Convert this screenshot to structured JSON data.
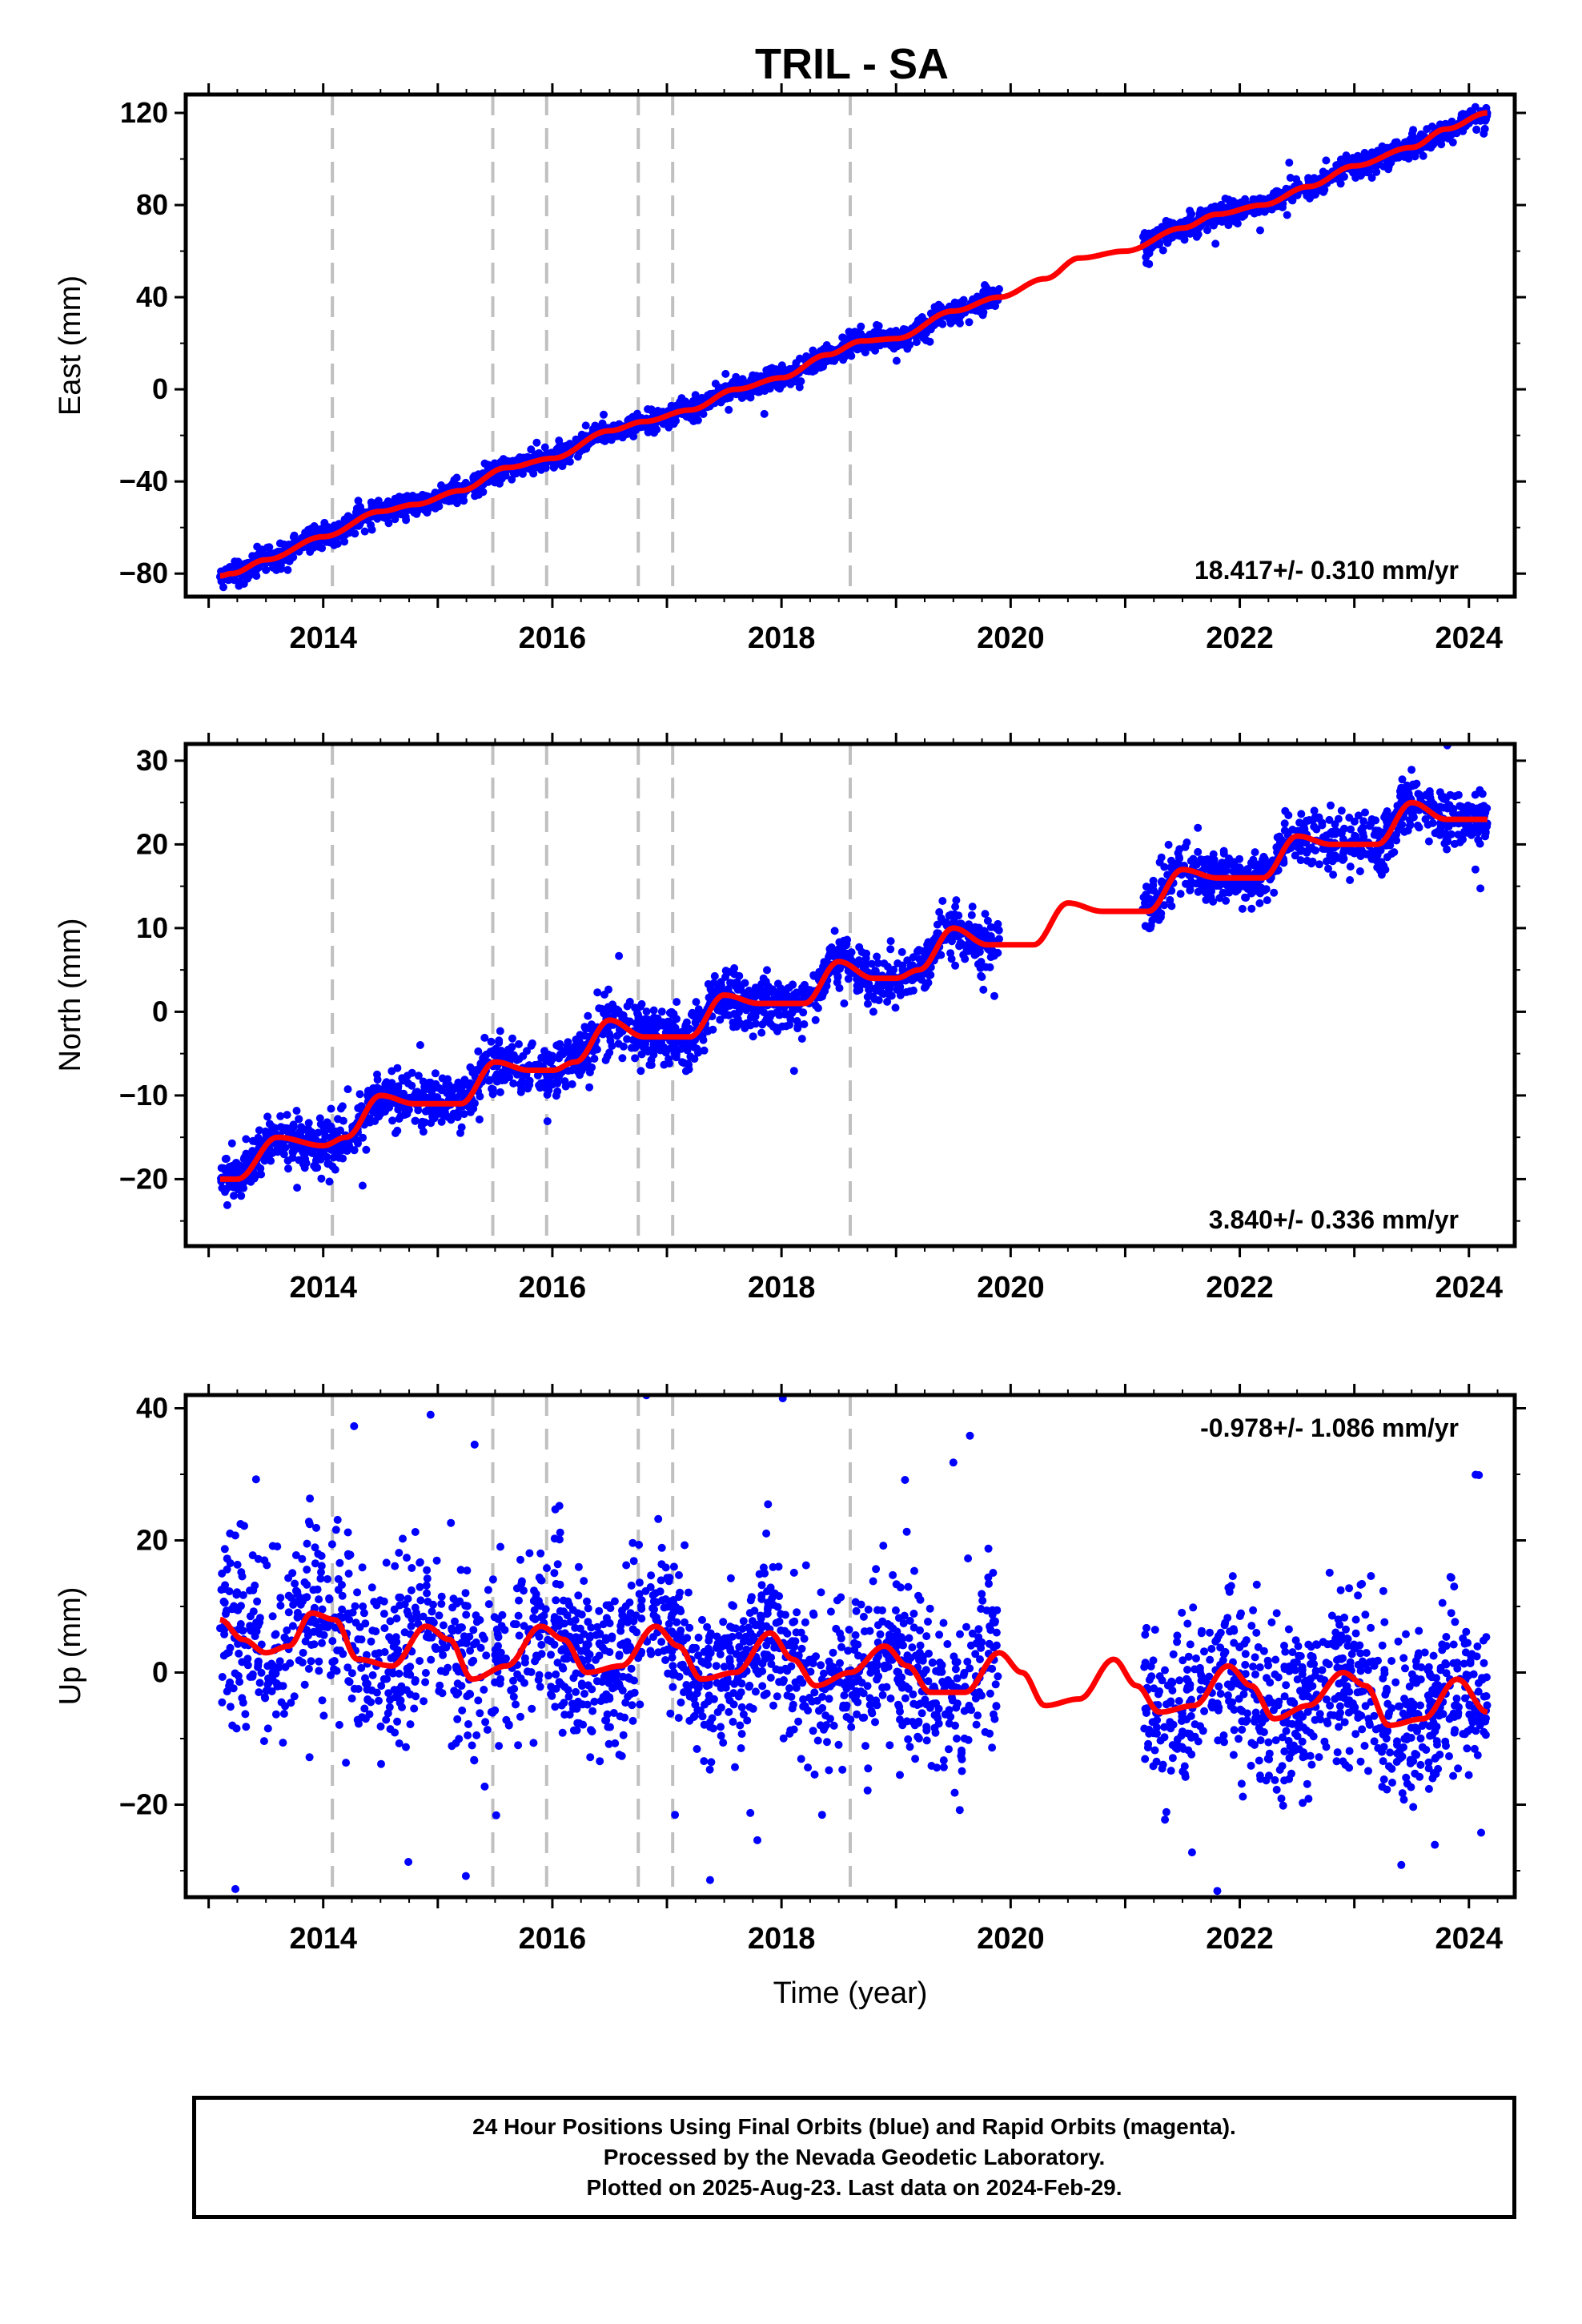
{
  "title": "TRIL - SA",
  "footer": {
    "line1": "24 Hour Positions Using Final Orbits (blue) and Rapid Orbits (magenta).",
    "line2": "Processed by the Nevada Geodetic Laboratory.",
    "line3": "Plotted on 2025-Aug-23. Last data on 2024-Feb-29."
  },
  "colors": {
    "points": "#0000ff",
    "fit": "#ff0000",
    "breaks": "#c0c0c0"
  },
  "chart_data": [
    {
      "type": "scatter",
      "ylabel": "East (mm)",
      "xlabel": "",
      "xlim": [
        2012.8,
        2024.4
      ],
      "ylim": [
        -90,
        128
      ],
      "yticks": [
        -80,
        -40,
        0,
        40,
        80,
        120
      ],
      "xticks": [
        2014,
        2016,
        2018,
        2020,
        2022,
        2024
      ],
      "rate_label": "18.417+/- 0.310 mm/yr",
      "rate_position": "bottom-right",
      "breaks": [
        2014.08,
        2015.48,
        2015.95,
        2016.75,
        2017.05,
        2018.6
      ],
      "gap": [
        2019.9,
        2021.15
      ],
      "data_range": [
        2013.1,
        2024.16
      ],
      "trend": {
        "t0": 2013.1,
        "y0": -80.5,
        "rate": 18.417
      },
      "fit": {
        "x": [
          2013.1,
          2013.2,
          2013.5,
          2014.0,
          2014.5,
          2014.8,
          2015.2,
          2015.6,
          2016.0,
          2016.5,
          2016.8,
          2017.2,
          2017.6,
          2018.0,
          2018.4,
          2018.7,
          2019.0,
          2019.5,
          2019.9,
          2020.3,
          2020.6,
          2021.0,
          2021.5,
          2021.8,
          2022.2,
          2022.6,
          2023.0,
          2023.5,
          2023.8,
          2024.16
        ],
        "y": [
          -81,
          -80,
          -74,
          -64,
          -53,
          -50,
          -44,
          -34,
          -30,
          -18,
          -14,
          -9,
          0,
          5,
          15,
          21,
          22,
          34,
          40,
          48,
          57,
          60,
          70,
          76,
          80,
          88,
          97,
          105,
          113,
          120
        ]
      },
      "points": {
        "count": 2700,
        "noise": 2.5,
        "outliers": 10
      }
    },
    {
      "type": "scatter",
      "ylabel": "North (mm)",
      "xlabel": "",
      "xlim": [
        2012.8,
        2024.4
      ],
      "ylim": [
        -28,
        32
      ],
      "yticks": [
        -20,
        -10,
        0,
        10,
        20,
        30
      ],
      "xticks": [
        2014,
        2016,
        2018,
        2020,
        2022,
        2024
      ],
      "rate_label": "3.840+/- 0.336 mm/yr",
      "rate_position": "bottom-right",
      "breaks": [
        2014.08,
        2015.48,
        2015.95,
        2016.75,
        2017.05,
        2018.6
      ],
      "gap": [
        2019.9,
        2021.15
      ],
      "data_range": [
        2013.1,
        2024.16
      ],
      "trend": {
        "t0": 2013.1,
        "y0": -20.0,
        "rate": 3.84
      },
      "fit": {
        "x": [
          2013.1,
          2013.25,
          2013.6,
          2014.0,
          2014.2,
          2014.5,
          2014.8,
          2015.0,
          2015.2,
          2015.5,
          2015.8,
          2016.0,
          2016.2,
          2016.5,
          2016.8,
          2017.0,
          2017.2,
          2017.5,
          2017.8,
          2018.0,
          2018.2,
          2018.5,
          2018.8,
          2019.0,
          2019.2,
          2019.5,
          2019.8,
          2020.0,
          2020.2,
          2020.5,
          2020.8,
          2021.0,
          2021.2,
          2021.5,
          2021.8,
          2022.0,
          2022.2,
          2022.5,
          2022.8,
          2023.0,
          2023.2,
          2023.5,
          2023.8,
          2024.16
        ],
        "y": [
          -20,
          -20,
          -15,
          -16,
          -15,
          -10,
          -11,
          -11,
          -11,
          -6,
          -7,
          -7,
          -6,
          -1,
          -3,
          -3,
          -3,
          2,
          1,
          1,
          1,
          6,
          4,
          4,
          5,
          10,
          8,
          8,
          8,
          13,
          12,
          12,
          12,
          17,
          16,
          16,
          16,
          21,
          20,
          20,
          20,
          25,
          23,
          23
        ]
      },
      "points": {
        "count": 2700,
        "noise": 1.6,
        "outliers": 12
      }
    },
    {
      "type": "scatter",
      "ylabel": "Up (mm)",
      "xlabel": "Time (year)",
      "xlim": [
        2012.8,
        2024.4
      ],
      "ylim": [
        -34,
        42
      ],
      "yticks": [
        -20,
        0,
        20,
        40
      ],
      "xticks": [
        2014,
        2016,
        2018,
        2020,
        2022,
        2024
      ],
      "rate_label": "-0.978+/- 1.086 mm/yr",
      "rate_position": "top-right",
      "breaks": [
        2014.08,
        2015.48,
        2015.95,
        2016.75,
        2017.05,
        2018.6
      ],
      "gap": [
        2019.9,
        2021.15
      ],
      "data_range": [
        2013.1,
        2024.16
      ],
      "trend": {
        "t0": 2013.1,
        "y0": 5.0,
        "rate": -0.978
      },
      "fit": {
        "x": [
          2013.1,
          2013.3,
          2013.5,
          2013.7,
          2013.9,
          2014.1,
          2014.3,
          2014.6,
          2014.9,
          2015.1,
          2015.3,
          2015.6,
          2015.9,
          2016.1,
          2016.3,
          2016.6,
          2016.9,
          2017.1,
          2017.3,
          2017.6,
          2017.9,
          2018.1,
          2018.3,
          2018.6,
          2018.9,
          2019.1,
          2019.3,
          2019.6,
          2019.9,
          2020.1,
          2020.3,
          2020.6,
          2020.9,
          2021.1,
          2021.3,
          2021.6,
          2021.9,
          2022.1,
          2022.3,
          2022.6,
          2022.9,
          2023.1,
          2023.3,
          2023.6,
          2023.9,
          2024.16
        ],
        "y": [
          8,
          5,
          3,
          4,
          9,
          8,
          2,
          1,
          7,
          5,
          -1,
          1,
          7,
          5,
          0,
          1,
          7,
          4,
          -1,
          0,
          6,
          2,
          -2,
          0,
          4,
          1,
          -3,
          -3,
          3,
          0,
          -5,
          -4,
          2,
          -2,
          -6,
          -5,
          1,
          -2,
          -7,
          -5,
          0,
          -2,
          -8,
          -7,
          -1,
          -6
        ]
      },
      "points": {
        "count": 2700,
        "noise": 6.5,
        "outliers": 25
      }
    }
  ]
}
